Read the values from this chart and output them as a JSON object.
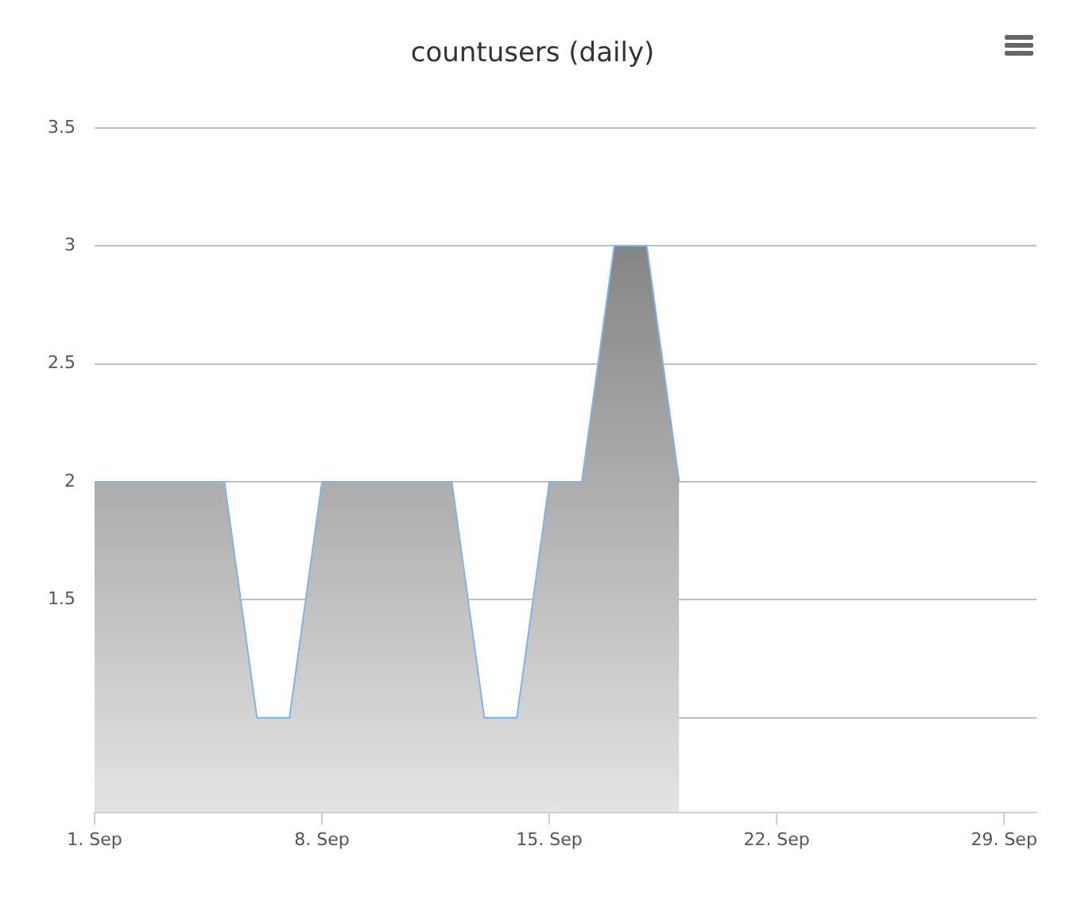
{
  "chart_data": {
    "type": "area",
    "title": "countusers (daily)",
    "x": [
      "--09-01",
      "--09-02",
      "--09-03",
      "--09-04",
      "--09-05",
      "--09-06",
      "--09-07",
      "--09-08",
      "--09-09",
      "--09-10",
      "--09-11",
      "--09-12",
      "--09-13",
      "--09-14",
      "--09-15",
      "--09-16",
      "--09-17",
      "--09-18",
      "--09-19"
    ],
    "series": [
      {
        "color": "#7cb5ec",
        "values": [
          2,
          2,
          2,
          2,
          2,
          1,
          1,
          2,
          2,
          2,
          2,
          2,
          1,
          1,
          2,
          2,
          3,
          3,
          2
        ]
      }
    ],
    "xlim": [
      "--09-01",
      "--09-30"
    ],
    "xticks": [
      {
        "value": "--09-01",
        "label": "1. Sep"
      },
      {
        "value": "--09-08",
        "label": "8. Sep"
      },
      {
        "value": "--09-15",
        "label": "15. Sep"
      },
      {
        "value": "--09-22",
        "label": "22. Sep"
      },
      {
        "value": "--09-29",
        "label": "29. Sep"
      }
    ],
    "ylim": [
      0.6,
      3.5
    ],
    "yticks": [
      {
        "value": 1,
        "label": null
      },
      1.5,
      2,
      2.5,
      3,
      3.5
    ],
    "grid": "y",
    "legend": false,
    "marker": "none"
  }
}
